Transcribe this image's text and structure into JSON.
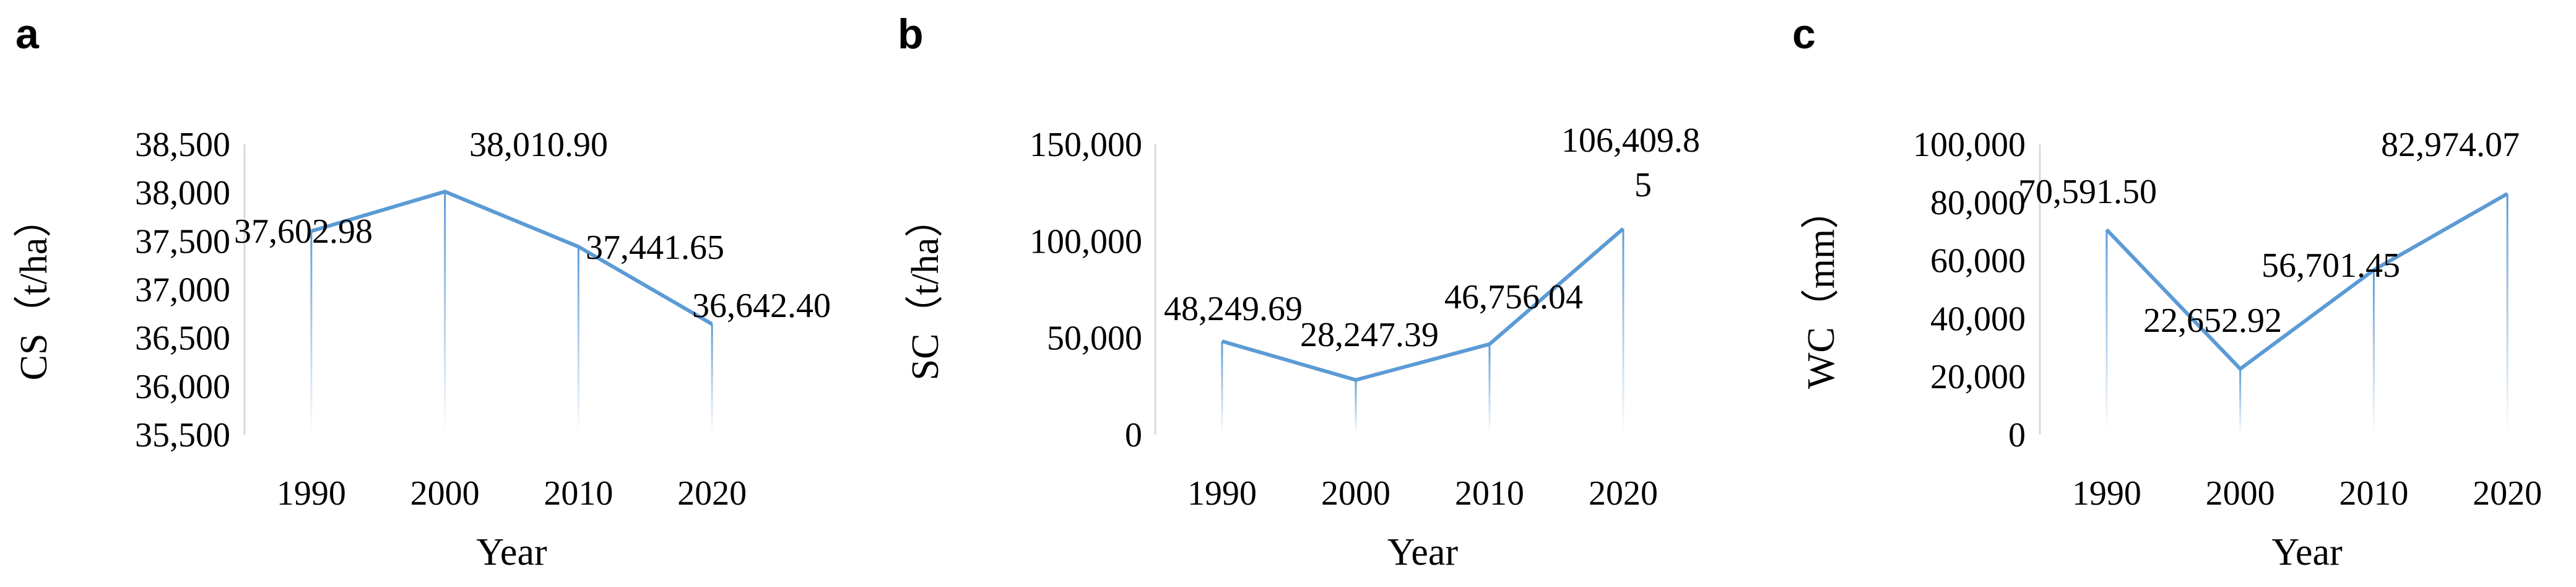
{
  "chart_data": [
    {
      "type": "line",
      "panel_label": "a",
      "categories": [
        "1990",
        "2000",
        "2010",
        "2020"
      ],
      "values": [
        37602.98,
        38010.9,
        37441.65,
        36642.4
      ],
      "value_labels": [
        "37,602.98",
        "38,010.90",
        "37,441.65",
        "36,642.40"
      ],
      "ylim": [
        35500,
        38500
      ],
      "yticks": [
        "35,500",
        "36,000",
        "36,500",
        "37,000",
        "37,500",
        "38,000",
        "38,500"
      ],
      "ylabel": "CS（t/ha）",
      "xlabel": "Year",
      "grid": false,
      "drop_lines": true,
      "line_color": "#5b9bd5"
    },
    {
      "type": "line",
      "panel_label": "b",
      "categories": [
        "1990",
        "2000",
        "2010",
        "2020"
      ],
      "values": [
        48249.69,
        28247.39,
        46756.04,
        106409.85
      ],
      "value_labels": [
        "48,249.69",
        "28,247.39",
        "46,756.04",
        "106,409.85"
      ],
      "ylim": [
        0,
        150000
      ],
      "yticks": [
        "0",
        "50,000",
        "100,000",
        "150,000"
      ],
      "ylabel": "SC（t/ha）",
      "xlabel": "Year",
      "grid": false,
      "drop_lines": true,
      "line_color": "#5b9bd5"
    },
    {
      "type": "line",
      "panel_label": "c",
      "categories": [
        "1990",
        "2000",
        "2010",
        "2020"
      ],
      "values": [
        70591.5,
        22652.92,
        56701.45,
        82974.07
      ],
      "value_labels": [
        "70,591.50",
        "22,652.92",
        "56,701.45",
        "82,974.07"
      ],
      "ylim": [
        0,
        100000
      ],
      "yticks": [
        "0",
        "20,000",
        "40,000",
        "60,000",
        "80,000",
        "100,000"
      ],
      "ylabel": "WC（mm）",
      "xlabel": "Year",
      "grid": false,
      "drop_lines": true,
      "line_color": "#5b9bd5"
    }
  ]
}
